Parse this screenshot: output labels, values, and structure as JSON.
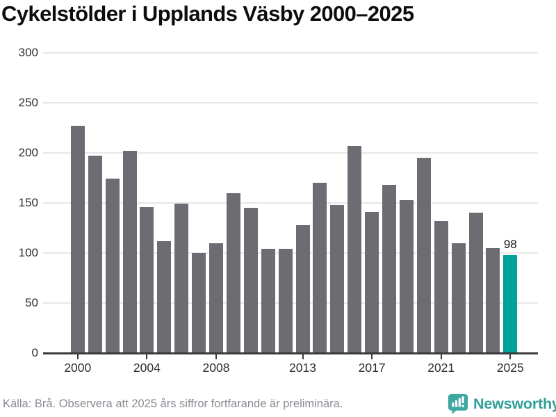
{
  "title": "Cykelstölder i Upplands Väsby 2000–2025",
  "footer": {
    "source_note": "Källa: Brå. Observera att 2025 års siffror fortfarande är preliminära.",
    "brand": "Newsworthy"
  },
  "colors": {
    "bar": "#6e6c72",
    "highlight": "#00a29a",
    "grid": "#e7e7e7",
    "axis": "#3a3a3e",
    "tick_label": "#2e2e33",
    "footer_text": "#8a8a92",
    "brand": "#3ea7a0",
    "brand_text": "#2f9f99",
    "title_text": "#0d0d0d",
    "annotation_text": "#111111"
  },
  "chart_data": {
    "type": "bar",
    "title": "Cykelstölder i Upplands Väsby 2000–2025",
    "categories": [
      2000,
      2001,
      2002,
      2003,
      2004,
      2005,
      2006,
      2007,
      2008,
      2009,
      2010,
      2011,
      2012,
      2013,
      2014,
      2015,
      2016,
      2017,
      2018,
      2019,
      2020,
      2021,
      2022,
      2023,
      2024,
      2025
    ],
    "values": [
      227,
      197,
      174,
      202,
      146,
      112,
      149,
      100,
      110,
      160,
      145,
      104,
      104,
      128,
      170,
      148,
      207,
      141,
      168,
      153,
      195,
      132,
      110,
      140,
      105,
      98
    ],
    "highlight_category": 2025,
    "annotation": {
      "category": 2025,
      "text": "98"
    },
    "xtick_labels": [
      "2000",
      "2004",
      "2008",
      "2013",
      "2017",
      "2021",
      "2025"
    ],
    "yticks": [
      0,
      50,
      100,
      150,
      200,
      250,
      300
    ],
    "ylim": [
      0,
      300
    ],
    "xlabel": "",
    "ylabel": "",
    "grid": "horizontal-only",
    "legend": "none"
  }
}
